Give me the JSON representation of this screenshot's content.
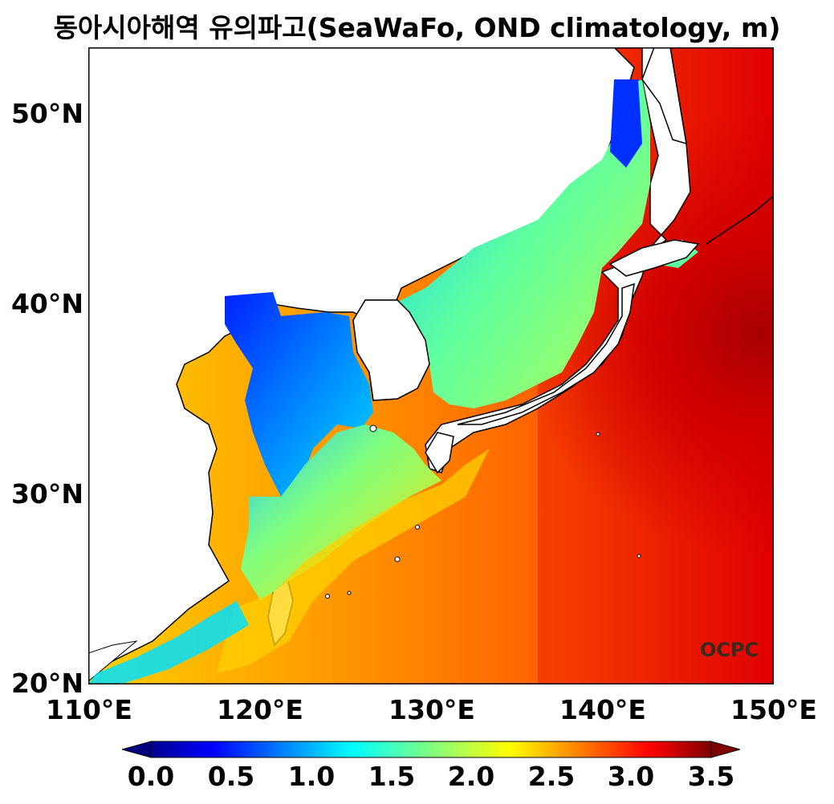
{
  "title": "동아시아해역 유의파고(SeaWaFo, OND climatology, m)",
  "axes": {
    "y_ticks": [
      "50°N",
      "40°N",
      "30°N",
      "20°N"
    ],
    "x_ticks": [
      "110°E",
      "120°E",
      "130°E",
      "140°E",
      "150°E"
    ],
    "lon_range": [
      110,
      150
    ],
    "lat_range": [
      20,
      53.5
    ]
  },
  "colorbar": {
    "ticks": [
      "0.0",
      "0.5",
      "1.0",
      "1.5",
      "2.0",
      "2.5",
      "3.0",
      "3.5"
    ],
    "range": [
      0,
      3.5
    ],
    "colormap": "jet",
    "extend": "both"
  },
  "logo": "OCPC",
  "colors": {
    "coastline": "#000000",
    "land": "#ffffff",
    "logo": "#3a2a1e"
  }
}
